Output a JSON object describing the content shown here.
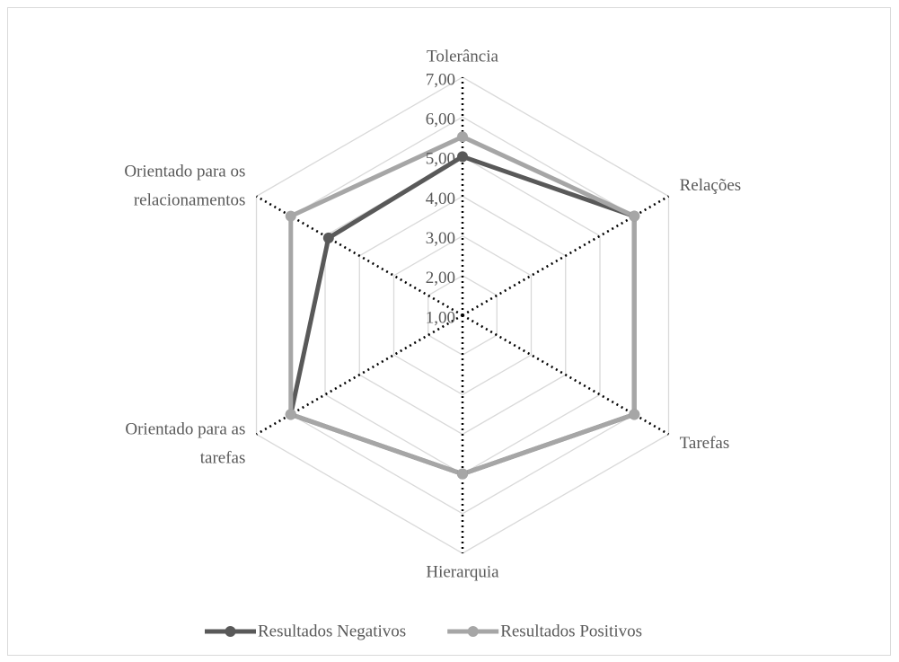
{
  "chart_data": {
    "type": "radar",
    "categories": [
      "Tolerância",
      "Relações",
      "Tarefas",
      "Hierarquia",
      "Orientado para as tarefas",
      "Orientado para os relacionamentos"
    ],
    "series": [
      {
        "name": "Resultados Negativos",
        "color": "#595959",
        "values": [
          5.0,
          6.0,
          6.0,
          5.0,
          6.0,
          4.9
        ]
      },
      {
        "name": "Resultados Positivos",
        "color": "#a6a6a6",
        "values": [
          5.5,
          6.0,
          6.0,
          5.0,
          6.0,
          6.0
        ]
      }
    ],
    "ylim": [
      1,
      7
    ],
    "yticks": [
      {
        "value": 1,
        "label": "1,00"
      },
      {
        "value": 2,
        "label": "2,00"
      },
      {
        "value": 3,
        "label": "3,00"
      },
      {
        "value": 4,
        "label": "4,00"
      },
      {
        "value": 5,
        "label": "5,00"
      },
      {
        "value": 6,
        "label": "6,00"
      },
      {
        "value": 7,
        "label": "7,00"
      }
    ],
    "grid": true,
    "legend": "bottom"
  }
}
